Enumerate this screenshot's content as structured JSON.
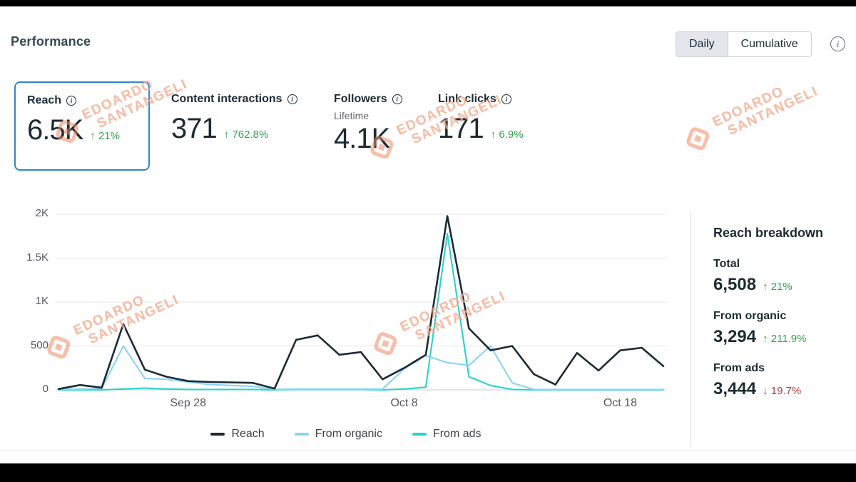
{
  "page": {
    "title": "Performance"
  },
  "view_toggle": {
    "daily": "Daily",
    "cumulative": "Cumulative"
  },
  "metrics": [
    {
      "label": "Reach",
      "value": "6.5K",
      "delta": "↑ 21%"
    },
    {
      "label": "Content interactions",
      "value": "371",
      "delta": "↑ 762.8%"
    },
    {
      "label": "Followers",
      "sublabel": "Lifetime",
      "value": "4.1K"
    },
    {
      "label": "Link clicks",
      "value": "171",
      "delta": "↑ 6.9%"
    }
  ],
  "chart_data": {
    "type": "line",
    "title": "",
    "xlabel": "",
    "ylabel": "",
    "ylim": [
      0,
      2000
    ],
    "grid": "horizontal",
    "legend_position": "bottom",
    "x": [
      "Sep 22",
      "Sep 23",
      "Sep 24",
      "Sep 25",
      "Sep 26",
      "Sep 27",
      "Sep 28",
      "Sep 29",
      "Sep 30",
      "Oct 1",
      "Oct 2",
      "Oct 3",
      "Oct 4",
      "Oct 5",
      "Oct 6",
      "Oct 7",
      "Oct 8",
      "Oct 9",
      "Oct 10",
      "Oct 11",
      "Oct 12",
      "Oct 13",
      "Oct 14",
      "Oct 15",
      "Oct 16",
      "Oct 17",
      "Oct 18",
      "Oct 19",
      "Oct 20"
    ],
    "x_tick_indices": [
      6,
      16,
      26
    ],
    "x_tick_labels": [
      "Sep 28",
      "Oct 8",
      "Oct 18"
    ],
    "y_ticks": [
      {
        "value": 2000,
        "label": "2K"
      },
      {
        "value": 1500,
        "label": "1.5K"
      },
      {
        "value": 1000,
        "label": "1K"
      },
      {
        "value": 500,
        "label": "500"
      },
      {
        "value": 0,
        "label": "0"
      }
    ],
    "series": [
      {
        "name": "Reach",
        "color": "#1c2b33",
        "values": [
          10,
          55,
          25,
          750,
          230,
          150,
          100,
          90,
          85,
          80,
          15,
          570,
          620,
          400,
          430,
          120,
          250,
          400,
          1980,
          700,
          450,
          500,
          180,
          60,
          420,
          220,
          450,
          480,
          270
        ]
      },
      {
        "name": "From organic",
        "color": "#8bd3f7",
        "values": [
          5,
          10,
          15,
          500,
          130,
          120,
          90,
          60,
          50,
          40,
          5,
          10,
          10,
          10,
          10,
          10,
          240,
          390,
          310,
          280,
          500,
          80,
          5,
          5,
          5,
          5,
          5,
          5,
          5
        ]
      },
      {
        "name": "From ads",
        "color": "#2ad2c9",
        "values": [
          0,
          0,
          0,
          10,
          20,
          10,
          5,
          5,
          5,
          5,
          0,
          5,
          5,
          5,
          5,
          0,
          10,
          30,
          1780,
          150,
          50,
          5,
          0,
          0,
          0,
          0,
          0,
          0,
          0
        ]
      }
    ]
  },
  "breakdown": {
    "title": "Reach breakdown",
    "rows": [
      {
        "label": "Total",
        "value": "6,508",
        "delta": "↑ 21%",
        "direction": "up"
      },
      {
        "label": "From organic",
        "value": "3,294",
        "delta": "↑ 211.9%",
        "direction": "up"
      },
      {
        "label": "From ads",
        "value": "3,444",
        "delta": "↓ 19.7%",
        "direction": "down"
      }
    ]
  },
  "watermark": {
    "line1": "EDOARDO",
    "line2": "SANTANGELI"
  },
  "colors": {
    "positive": "#31a24c",
    "negative": "#b13b3b",
    "reach_line": "#1c2b33",
    "organic_line": "#8bd3f7",
    "ads_line": "#2ad2c9",
    "selected_card_border": "#2d88c8",
    "toggle_selected_bg": "#e4e6eb",
    "watermark": "#ec8b64"
  }
}
